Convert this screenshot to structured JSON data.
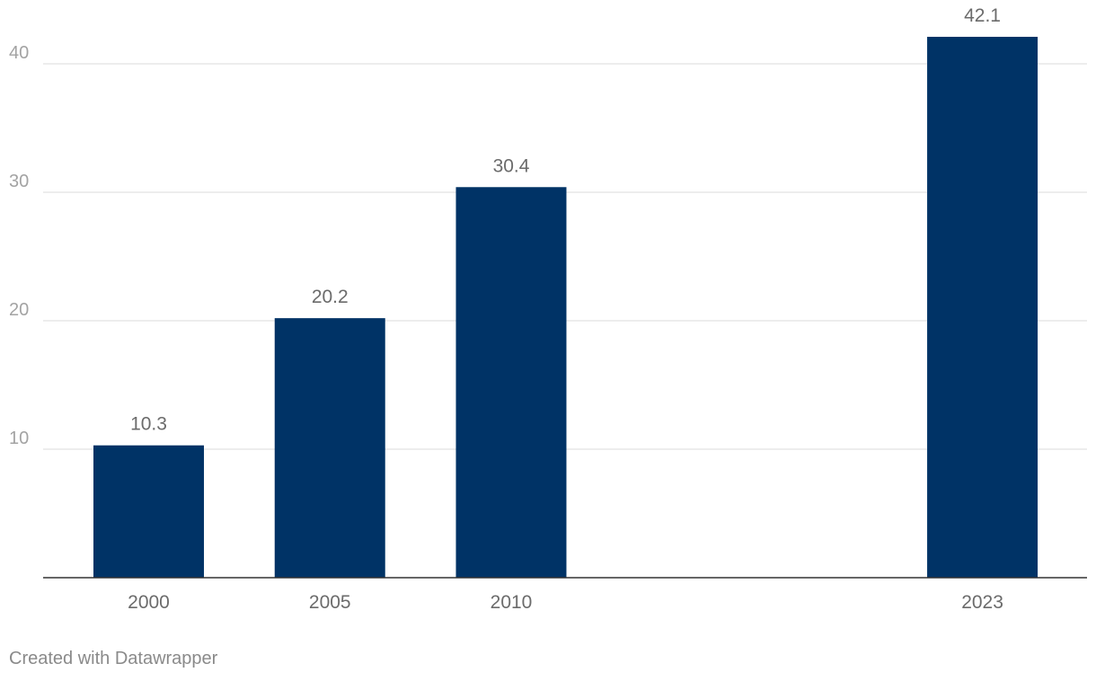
{
  "chart_data": {
    "type": "bar",
    "categories": [
      "2000",
      "2005",
      "2010",
      "2023"
    ],
    "x": [
      2000,
      2005,
      2010,
      2023
    ],
    "values": [
      10.3,
      20.2,
      30.4,
      42.1
    ],
    "data_labels": [
      "10.3",
      "20.2",
      "30.4",
      "42.1"
    ],
    "yticks": [
      10,
      20,
      30,
      40
    ],
    "ylim": [
      0,
      45
    ],
    "xlim": [
      1997,
      2027
    ],
    "grid": true,
    "legend": "none",
    "colors": {
      "bar": "#003366",
      "grid": "#e2e2e2",
      "baseline": "#333333"
    }
  },
  "footer": {
    "text": "Created with Datawrapper"
  }
}
